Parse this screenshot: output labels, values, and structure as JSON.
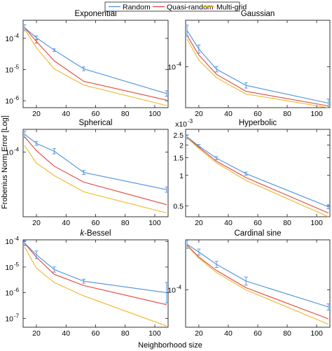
{
  "figure": {
    "xlabel": "Neighborhood size",
    "ylabel": "Frobenius Norm Error [Log]"
  },
  "colors": {
    "Random": "#4c90dc",
    "Quasi-random": "#e0473c",
    "Multi-grid": "#f2b52a"
  },
  "legend": {
    "entries": [
      "Random",
      "Quasi-random",
      "Multi-grid"
    ],
    "placement": "top-center"
  },
  "chart_data": [
    {
      "type": "line",
      "title": "Exponential",
      "title_italic_prefix": "",
      "yscale": "log",
      "xlim": [
        11,
        109
      ],
      "ylim": [
        6e-07,
        0.00038
      ],
      "xticks": [
        20,
        40,
        60,
        80,
        100
      ],
      "xtick_labels": [
        "20",
        "40",
        "60",
        "80",
        "100"
      ],
      "yticks": [
        1e-06,
        1e-05,
        0.0001
      ],
      "ytick_labels": [
        "10",
        "10",
        "10"
      ],
      "ytick_exponents": [
        "-6",
        "-5",
        "-4"
      ],
      "axis_exponent": "",
      "x": [
        12,
        20,
        32,
        52,
        108
      ],
      "series": [
        {
          "name": "Random",
          "values": [
            0.00022,
            0.000105,
            4.2e-05,
            1.05e-05,
            1.7e-06
          ],
          "errors": [
            0.1,
            0.06,
            0.04,
            0.06,
            0.09
          ]
        },
        {
          "name": "Quasi-random",
          "values": [
            0.00022,
            8e-05,
            1.9e-05,
            4.2e-06,
            1.05e-06
          ],
          "errors": [
            0,
            0.05,
            0,
            0,
            0
          ]
        },
        {
          "name": "Multi-grid",
          "values": [
            0.0002,
            5e-05,
            1.05e-05,
            3.2e-06,
            7e-07
          ],
          "errors": [
            0,
            0,
            0,
            0,
            0
          ]
        }
      ]
    },
    {
      "type": "line",
      "title": "Gaussian",
      "title_italic_prefix": "",
      "yscale": "log",
      "xlim": [
        11,
        109
      ],
      "ylim": [
        5e-05,
        0.00022
      ],
      "xticks": [
        20,
        40,
        60,
        80,
        100
      ],
      "xtick_labels": [
        "20",
        "40",
        "60",
        "80",
        "100"
      ],
      "yticks": [
        0.0001
      ],
      "ytick_labels": [
        "10"
      ],
      "ytick_exponents": [
        "-4"
      ],
      "axis_exponent": "",
      "x": [
        12,
        20,
        32,
        52,
        108
      ],
      "series": [
        {
          "name": "Random",
          "values": [
            0.000185,
            0.000135,
            9.6e-05,
            7.3e-05,
            5.4e-05
          ],
          "errors": [
            0.04,
            0.03,
            0.02,
            0.02,
            0.03
          ]
        },
        {
          "name": "Quasi-random",
          "values": [
            0.00017,
            0.000122,
            8.8e-05,
            6.6e-05,
            5.15e-05
          ],
          "errors": [
            0,
            0,
            0,
            0,
            0
          ]
        },
        {
          "name": "Multi-grid",
          "values": [
            0.00016,
            0.000112,
            8.3e-05,
            6.3e-05,
            5e-05
          ],
          "errors": [
            0,
            0,
            0,
            0,
            0
          ]
        }
      ]
    },
    {
      "type": "line",
      "title": "Spherical",
      "title_italic_prefix": "",
      "yscale": "log",
      "xlim": [
        11,
        109
      ],
      "ylim": [
        1.05e-05,
        0.00022
      ],
      "xticks": [
        20,
        40,
        60,
        80,
        100
      ],
      "xtick_labels": [
        "20",
        "40",
        "60",
        "80",
        "100"
      ],
      "yticks": [
        0.0001
      ],
      "ytick_labels": [
        "10"
      ],
      "ytick_exponents": [
        "-4"
      ],
      "axis_exponent": "",
      "x": [
        12,
        20,
        32,
        52,
        108
      ],
      "series": [
        {
          "name": "Random",
          "values": [
            0.000185,
            0.000135,
            0.000103,
            4.9e-05,
            2.7e-05
          ],
          "errors": [
            0.05,
            0.03,
            0.04,
            0.03,
            0.04
          ]
        },
        {
          "name": "Quasi-random",
          "values": [
            0.00017,
            0.000105,
            6.1e-05,
            3.5e-05,
            1.6e-05
          ],
          "errors": [
            0,
            0,
            0,
            0,
            0
          ]
        },
        {
          "name": "Multi-grid",
          "values": [
            0.000125,
            6.8e-05,
            4.4e-05,
            2.5e-05,
            1.2e-05
          ],
          "errors": [
            0,
            0,
            0,
            0,
            0
          ]
        }
      ]
    },
    {
      "type": "line",
      "title": "Hyperbolic",
      "title_italic_prefix": "",
      "yscale": "log",
      "xlim": [
        11,
        109
      ],
      "ylim": [
        0.00039,
        0.00285
      ],
      "xticks": [
        20,
        40,
        60,
        80,
        100
      ],
      "xtick_labels": [
        "20",
        "40",
        "60",
        "80",
        "100"
      ],
      "yticks": [
        0.0005,
        0.001,
        0.0015,
        0.002,
        0.0025
      ],
      "ytick_labels": [
        "0.5",
        "1",
        "1.5",
        "2",
        "2.5"
      ],
      "ytick_exponents": [
        "",
        "",
        "",
        "",
        ""
      ],
      "axis_exponent": "-3",
      "x": [
        12,
        20,
        32,
        52,
        108
      ],
      "series": [
        {
          "name": "Random",
          "values": [
            0.0024,
            0.00195,
            0.00148,
            0.00104,
            0.00049
          ],
          "errors": [
            0.02,
            0.015,
            0.015,
            0.015,
            0.02
          ]
        },
        {
          "name": "Quasi-random",
          "values": [
            0.00237,
            0.0019,
            0.00138,
            0.00095,
            0.000425
          ],
          "errors": [
            0,
            0,
            0,
            0,
            0
          ]
        },
        {
          "name": "Multi-grid",
          "values": [
            0.00235,
            0.00185,
            0.00133,
            0.00089,
            0.00039
          ],
          "errors": [
            0,
            0,
            0,
            0,
            0
          ]
        }
      ]
    },
    {
      "type": "line",
      "title": "-Bessel",
      "title_italic_prefix": "k",
      "yscale": "log",
      "xlim": [
        11,
        109
      ],
      "ylim": [
        4.5e-08,
        0.000115
      ],
      "xticks": [
        20,
        40,
        60,
        80,
        100
      ],
      "xtick_labels": [
        "20",
        "40",
        "60",
        "80",
        "100"
      ],
      "yticks": [
        1e-07,
        1e-06,
        1e-05,
        0.0001
      ],
      "ytick_labels": [
        "10",
        "10",
        "10",
        "10"
      ],
      "ytick_exponents": [
        "-7",
        "-6",
        "-5",
        "-4"
      ],
      "axis_exponent": "",
      "x": [
        12,
        20,
        32,
        52,
        108
      ],
      "series": [
        {
          "name": "Random",
          "values": [
            8.5e-05,
            3e-05,
            8e-06,
            2.8e-06,
            1e-06
          ],
          "errors": [
            0.1,
            0.15,
            0.1,
            0.08,
            0.4
          ]
        },
        {
          "name": "Quasi-random",
          "values": [
            8.5e-05,
            2.4e-05,
            5.2e-06,
            1.9e-06,
            3.4e-07
          ],
          "errors": [
            0,
            0,
            0,
            0,
            0
          ]
        },
        {
          "name": "Multi-grid",
          "values": [
            6e-05,
            9e-06,
            2.5e-06,
            7.5e-07,
            5e-08
          ],
          "errors": [
            0,
            0,
            0,
            0,
            0
          ]
        }
      ]
    },
    {
      "type": "line",
      "title": "Cardinal sine",
      "title_italic_prefix": "",
      "yscale": "log",
      "xlim": [
        11,
        109
      ],
      "ylim": [
        4.3e-05,
        0.00031
      ],
      "xticks": [
        20,
        40,
        60,
        80,
        100
      ],
      "xtick_labels": [
        "20",
        "40",
        "60",
        "80",
        "100"
      ],
      "yticks": [
        0.0001
      ],
      "ytick_labels": [
        "10"
      ],
      "ytick_exponents": [
        "-4"
      ],
      "axis_exponent": "",
      "x": [
        12,
        20,
        32,
        52,
        108
      ],
      "series": [
        {
          "name": "Random",
          "values": [
            0.00028,
            0.000235,
            0.000178,
            0.000122,
            6.8e-05
          ],
          "errors": [
            0.04,
            0.03,
            0.03,
            0.04,
            0.03
          ]
        },
        {
          "name": "Quasi-random",
          "values": [
            0.000275,
            0.00021,
            0.000155,
            0.000105,
            5.2e-05
          ],
          "errors": [
            0,
            0,
            0,
            0,
            0
          ]
        },
        {
          "name": "Multi-grid",
          "values": [
            0.00027,
            0.000205,
            0.000148,
            0.0001,
            4.6e-05
          ],
          "errors": [
            0,
            0,
            0,
            0,
            0
          ]
        }
      ]
    }
  ]
}
